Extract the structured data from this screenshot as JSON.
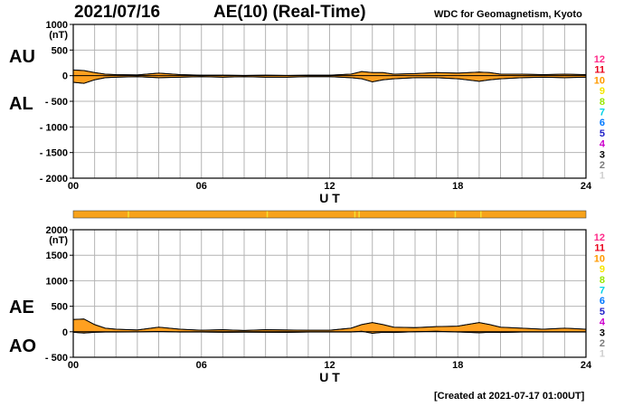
{
  "header": {
    "date": "2021/07/16",
    "title": "AE(10) (Real-Time)",
    "source": "WDC for Geomagnetism, Kyoto"
  },
  "footer": {
    "created": "[Created at 2021-07-17 01:00UT]"
  },
  "colors": {
    "fill": "#ffa020",
    "grid": "#b4b4b4",
    "status_bar": "#f7a21b",
    "status_gap": "#f5e030"
  },
  "station_legend": [
    {
      "label": "12",
      "color": "#ff2b8a"
    },
    {
      "label": "11",
      "color": "#e8001a"
    },
    {
      "label": "10",
      "color": "#ff9a00"
    },
    {
      "label": "9",
      "color": "#f5e600"
    },
    {
      "label": "8",
      "color": "#98e600"
    },
    {
      "label": "7",
      "color": "#00d2e6"
    },
    {
      "label": "6",
      "color": "#0078ff"
    },
    {
      "label": "5",
      "color": "#2020c8"
    },
    {
      "label": "4",
      "color": "#cc00cc"
    },
    {
      "label": "3",
      "color": "#000000"
    },
    {
      "label": "2",
      "color": "#7a7a7a"
    },
    {
      "label": "1",
      "color": "#cfcfcf"
    }
  ],
  "chart_data": [
    {
      "type": "area",
      "name": "AU/AL panel",
      "labels": {
        "upper": "AU",
        "lower": "AL"
      },
      "xlabel": "U T",
      "ylabel": "(nT)",
      "x_ticks": [
        0,
        6,
        12,
        18,
        24
      ],
      "x_tick_labels": [
        "00",
        "06",
        "12",
        "18",
        "24"
      ],
      "ylim": [
        -2000,
        1000
      ],
      "y_ticks": [
        1000,
        500,
        0,
        -500,
        -1000,
        -1500,
        -2000
      ],
      "y_tick_labels": [
        "1000",
        "500",
        "0",
        "- 500",
        "- 1000",
        "- 1500",
        "- 2000"
      ],
      "grid": true,
      "x": [
        0,
        0.5,
        1,
        1.5,
        2,
        3,
        4,
        5,
        6,
        7,
        8,
        9,
        10,
        11,
        12,
        13,
        13.5,
        14,
        14.5,
        15,
        16,
        17,
        18,
        19,
        19.5,
        20,
        21,
        22,
        23,
        24
      ],
      "series": [
        {
          "name": "AU",
          "values": [
            110,
            100,
            60,
            30,
            20,
            15,
            50,
            20,
            10,
            10,
            5,
            10,
            5,
            10,
            10,
            30,
            80,
            60,
            60,
            30,
            40,
            60,
            50,
            70,
            60,
            30,
            30,
            20,
            30,
            20
          ]
        },
        {
          "name": "AL",
          "values": [
            -130,
            -150,
            -80,
            -40,
            -30,
            -20,
            -40,
            -30,
            -20,
            -30,
            -20,
            -30,
            -30,
            -20,
            -20,
            -40,
            -60,
            -120,
            -80,
            -60,
            -40,
            -40,
            -60,
            -110,
            -80,
            -60,
            -40,
            -30,
            -40,
            -30
          ]
        }
      ]
    },
    {
      "type": "area",
      "name": "AE/AO panel",
      "labels": {
        "upper": "AE",
        "lower": "AO"
      },
      "xlabel": "U T",
      "ylabel": "(nT)",
      "x_ticks": [
        0,
        6,
        12,
        18,
        24
      ],
      "x_tick_labels": [
        "00",
        "06",
        "12",
        "18",
        "24"
      ],
      "ylim": [
        -500,
        2000
      ],
      "y_ticks": [
        2000,
        1500,
        1000,
        500,
        0,
        -500
      ],
      "y_tick_labels": [
        "2000",
        "1500",
        "1000",
        "500",
        "0",
        "- 500"
      ],
      "grid": true,
      "x": [
        0,
        0.5,
        1,
        1.5,
        2,
        3,
        4,
        5,
        6,
        7,
        8,
        9,
        10,
        11,
        12,
        13,
        13.5,
        14,
        14.5,
        15,
        16,
        17,
        18,
        19,
        19.5,
        20,
        21,
        22,
        23,
        24
      ],
      "series": [
        {
          "name": "AE",
          "values": [
            240,
            250,
            140,
            70,
            50,
            35,
            90,
            50,
            30,
            40,
            25,
            40,
            35,
            30,
            30,
            70,
            140,
            180,
            140,
            90,
            80,
            100,
            110,
            180,
            140,
            90,
            70,
            50,
            70,
            50
          ]
        },
        {
          "name": "AO",
          "values": [
            -10,
            -25,
            -10,
            -5,
            -5,
            -3,
            5,
            -5,
            -5,
            -10,
            -8,
            -10,
            -13,
            -5,
            -5,
            -5,
            10,
            -30,
            -10,
            -15,
            0,
            10,
            -5,
            -20,
            -10,
            -15,
            -5,
            -5,
            -5,
            -5
          ]
        }
      ]
    }
  ]
}
